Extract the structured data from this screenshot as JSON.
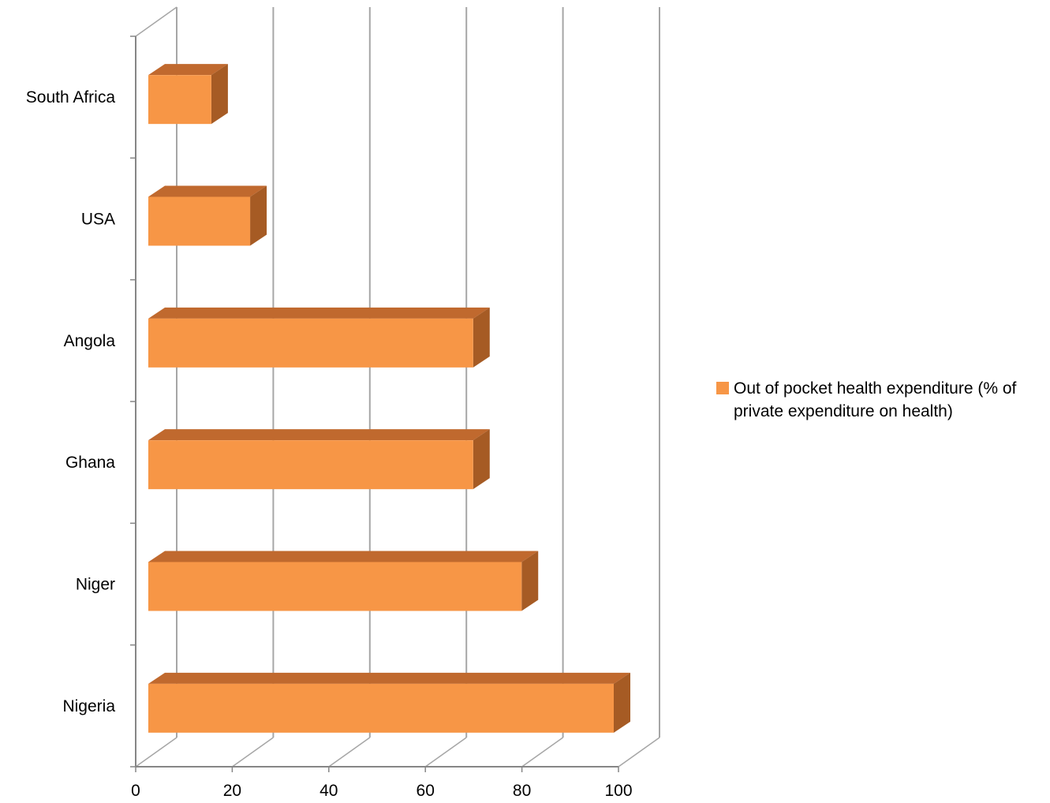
{
  "chart_data": {
    "type": "bar",
    "orientation": "horizontal",
    "style": "3d",
    "categories": [
      "South Africa",
      "USA",
      "Angola",
      "Ghana",
      "Niger",
      "Nigeria"
    ],
    "series": [
      {
        "name": "Out of pocket health expenditure (% of private expenditure on health)",
        "values": [
          13,
          21,
          67,
          67,
          77,
          96
        ],
        "color": "#f79646"
      }
    ],
    "x_ticks": [
      "0",
      "20",
      "40",
      "60",
      "80",
      "100"
    ],
    "xlim": [
      0,
      100
    ],
    "grid": true,
    "legend_position": "right",
    "colors": {
      "bar_front": "#f79646",
      "bar_top": "#c0692e",
      "bar_side": "#a65b24",
      "grid": "#a6a6a6",
      "axis": "#868686"
    }
  }
}
